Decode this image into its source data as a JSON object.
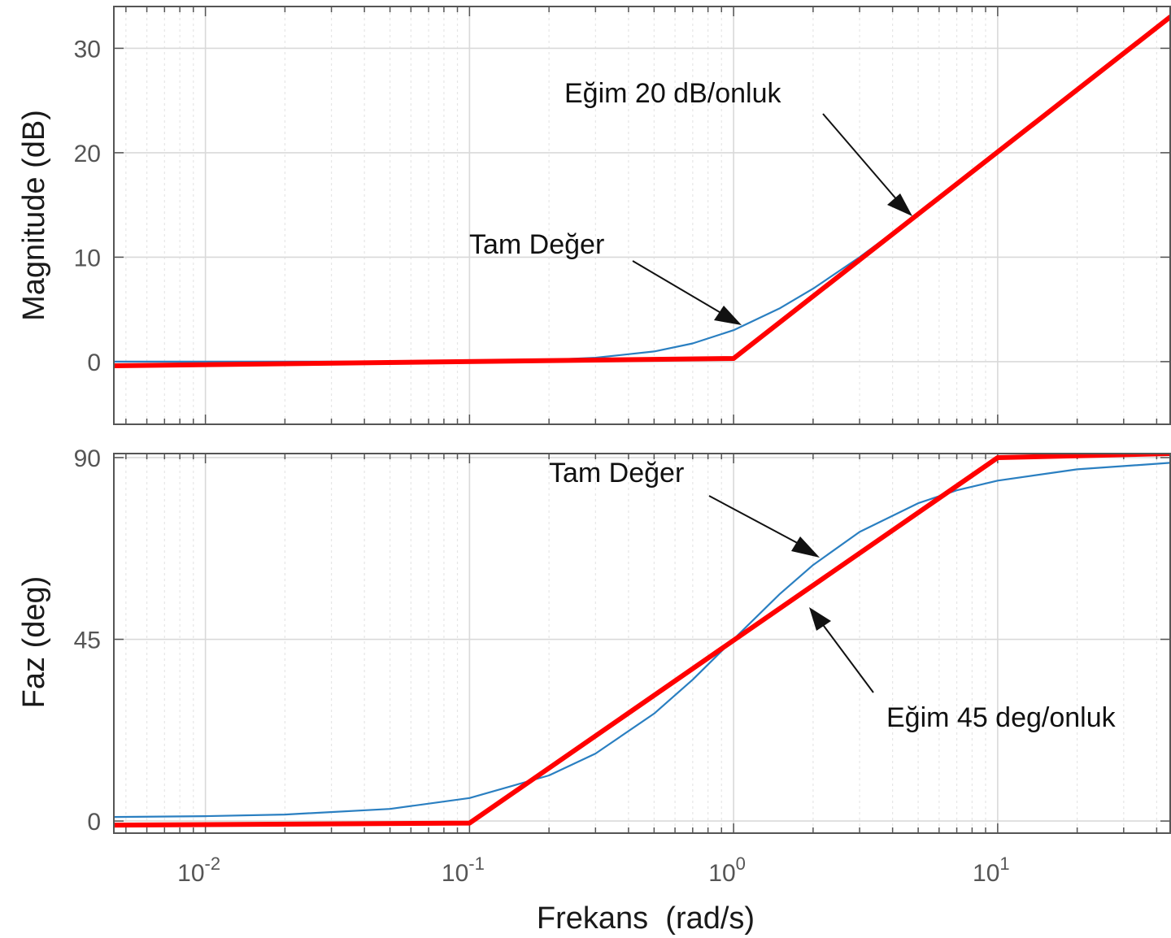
{
  "chart_data": [
    {
      "type": "line",
      "title": "",
      "xlabel": "",
      "ylabel": "Magnitude (dB)",
      "xscale": "log",
      "xlim": [
        0.0045,
        45
      ],
      "ylim": [
        -6,
        34
      ],
      "yticks": [
        0,
        10,
        20,
        30
      ],
      "grid": true,
      "series": [
        {
          "name": "",
          "color": "#2a7fc1",
          "kind": "exact",
          "x": [
            0.0045,
            0.01,
            0.03,
            0.1,
            0.2,
            0.3,
            0.5,
            0.7,
            1,
            1.5,
            2,
            3,
            5,
            7,
            10,
            20,
            45
          ],
          "y": [
            0.0,
            0.0,
            0.0,
            0.04,
            0.17,
            0.37,
            0.97,
            1.74,
            3.01,
            5.12,
            6.99,
            10.0,
            14.15,
            17.0,
            20.04,
            26.03,
            33.07
          ]
        },
        {
          "name": "",
          "color": "#ff0000",
          "kind": "asymptote",
          "x": [
            0.0045,
            1,
            45
          ],
          "y": [
            -0.4,
            0.3,
            33.0
          ]
        }
      ]
    },
    {
      "type": "line",
      "title": "",
      "xlabel": "Frekans  (rad/s)",
      "ylabel": "Faz (deg)",
      "xscale": "log",
      "xlim": [
        0.0045,
        45
      ],
      "ylim": [
        -3,
        91
      ],
      "yticks": [
        0,
        45,
        90
      ],
      "xticks": [
        "-2",
        "-1",
        "0",
        "1"
      ],
      "xtick_base": "10",
      "grid": true,
      "series": [
        {
          "name": "",
          "color": "#2a7fc1",
          "kind": "exact",
          "x": [
            0.0045,
            0.01,
            0.02,
            0.05,
            0.1,
            0.2,
            0.3,
            0.5,
            0.7,
            1,
            1.5,
            2,
            3,
            5,
            7,
            10,
            20,
            45
          ],
          "y": [
            1.0,
            1.2,
            1.6,
            3.0,
            5.7,
            11.3,
            16.7,
            26.6,
            35.0,
            45.0,
            56.3,
            63.4,
            71.6,
            78.7,
            81.9,
            84.3,
            87.1,
            88.7
          ]
        },
        {
          "name": "",
          "color": "#ff0000",
          "kind": "asymptote",
          "x": [
            0.0045,
            0.1,
            10,
            45
          ],
          "y": [
            -1.0,
            -0.5,
            90.0,
            91.0
          ]
        }
      ]
    }
  ],
  "annotations": {
    "mag_slope": "Eğim 20 dB/onluk",
    "mag_exact": "Tam Değer",
    "phase_exact": "Tam Değer",
    "phase_slope": "Eğim 45 deg/onluk"
  },
  "colors": {
    "axes": "#555555",
    "grid_major": "#d9d9d9",
    "grid_minor": "#e6e6e6",
    "exact": "#2a7fc1",
    "asymptote": "#ff0000"
  }
}
